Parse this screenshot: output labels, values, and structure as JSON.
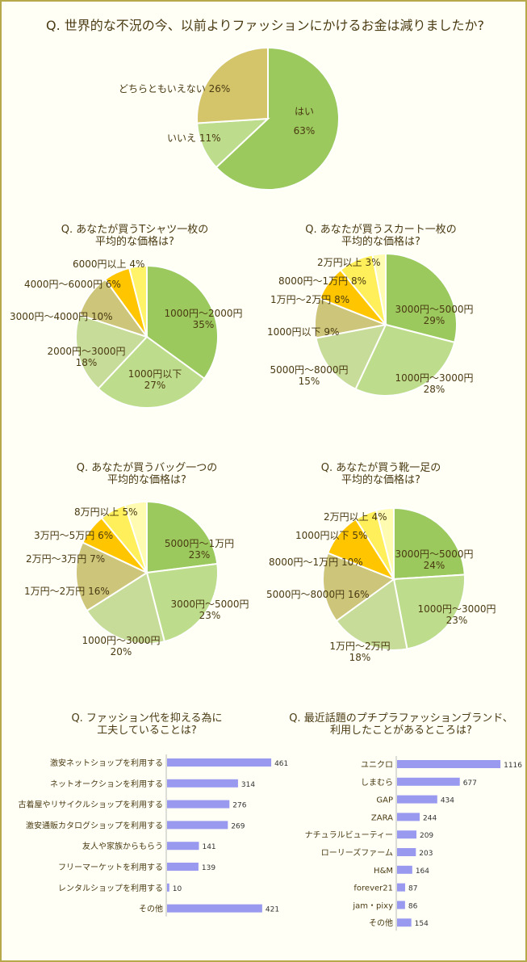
{
  "colors": {
    "frame": "#b6a94a",
    "slice_palette": [
      "#9bc95d",
      "#bedd8c",
      "#c9cf7a",
      "#ffc600",
      "#ffef5a",
      "#fffbb0"
    ],
    "bar": "#9999f0"
  },
  "chart_data": [
    {
      "type": "pie",
      "title": "Q. 世界的な不況の今、以前よりファッションにかけるお金は減りましたか?",
      "slices": [
        {
          "label": "はい",
          "value": 63,
          "pct": "63%",
          "color": "#9bc95d"
        },
        {
          "label": "いいえ",
          "value": 11,
          "pct": "11%",
          "color": "#bedd8c"
        },
        {
          "label": "どちらともいえない",
          "value": 26,
          "pct": "26%",
          "color": "#d4c56a"
        }
      ]
    },
    {
      "type": "pie",
      "title_lines": [
        "Q. あなたが買うTシャツ一枚の",
        "平均的な価格は?"
      ],
      "slices": [
        {
          "label": "1000円～2000円",
          "value": 35,
          "pct": "35%",
          "color": "#9bc95d"
        },
        {
          "label": "1000円以下",
          "value": 27,
          "pct": "27%",
          "color": "#bedd8c"
        },
        {
          "label": "2000円～3000円",
          "value": 18,
          "pct": "18%",
          "color": "#c8dc9a"
        },
        {
          "label": "3000円～4000円",
          "value": 10,
          "pct": "10%",
          "color": "#cdc57a"
        },
        {
          "label": "4000円～6000円",
          "value": 6,
          "pct": "6%",
          "color": "#ffc600"
        },
        {
          "label": "6000円以上",
          "value": 4,
          "pct": "4%",
          "color": "#fff36a"
        }
      ]
    },
    {
      "type": "pie",
      "title_lines": [
        "Q. あなたが買うスカート一枚の",
        "平均的な価格は?"
      ],
      "slices": [
        {
          "label": "3000円～5000円",
          "value": 29,
          "pct": "29%",
          "color": "#9bc95d"
        },
        {
          "label": "1000円～3000円",
          "value": 28,
          "pct": "28%",
          "color": "#bedd8c"
        },
        {
          "label": "5000円～8000円",
          "value": 15,
          "pct": "15%",
          "color": "#c8dc9a"
        },
        {
          "label": "1000円以下",
          "value": 9,
          "pct": "9%",
          "color": "#cdc57a"
        },
        {
          "label": "1万円～2万円",
          "value": 8,
          "pct": "8%",
          "color": "#ffc600"
        },
        {
          "label": "8000円～1万円",
          "value": 8,
          "pct": "8%",
          "color": "#ffef5a"
        },
        {
          "label": "2万円以上",
          "value": 3,
          "pct": "3%",
          "color": "#fffbb0"
        }
      ]
    },
    {
      "type": "pie",
      "title_lines": [
        "Q. あなたが買うバッグ一つの",
        "平均的な価格は?"
      ],
      "slices": [
        {
          "label": "5000円～1万円",
          "value": 23,
          "pct": "23%",
          "color": "#9bc95d"
        },
        {
          "label": "3000円～5000円",
          "value": 23,
          "pct": "23%",
          "color": "#bedd8c"
        },
        {
          "label": "1000円～3000円",
          "value": 20,
          "pct": "20%",
          "color": "#c8dc9a"
        },
        {
          "label": "1万円～2万円",
          "value": 16,
          "pct": "16%",
          "color": "#cdc57a"
        },
        {
          "label": "2万円～3万円",
          "value": 7,
          "pct": "7%",
          "color": "#ffc600"
        },
        {
          "label": "3万円～5万円",
          "value": 6,
          "pct": "6%",
          "color": "#ffef5a"
        },
        {
          "label": "8万円以上",
          "value": 5,
          "pct": "5%",
          "color": "#fffbb0"
        }
      ]
    },
    {
      "type": "pie",
      "title_lines": [
        "Q. あなたが買う靴一足の",
        "平均的な価格は?"
      ],
      "slices": [
        {
          "label": "3000円～5000円",
          "value": 24,
          "pct": "24%",
          "color": "#9bc95d"
        },
        {
          "label": "1000円～3000円",
          "value": 23,
          "pct": "23%",
          "color": "#bedd8c"
        },
        {
          "label": "1万円～2万円",
          "value": 18,
          "pct": "18%",
          "color": "#c8dc9a"
        },
        {
          "label": "5000円～8000円",
          "value": 16,
          "pct": "16%",
          "color": "#cdc57a"
        },
        {
          "label": "8000円～1万円",
          "value": 10,
          "pct": "10%",
          "color": "#ffc600"
        },
        {
          "label": "1000円以下",
          "value": 5,
          "pct": "5%",
          "color": "#ffef5a"
        },
        {
          "label": "2万円以上",
          "value": 4,
          "pct": "4%",
          "color": "#fffbb0"
        }
      ]
    },
    {
      "type": "bar",
      "orientation": "horizontal",
      "title_lines": [
        "Q. ファッション代を抑える為に",
        "工夫していることは?"
      ],
      "categories": [
        "激安ネットショップを利用する",
        "ネットオークションを利用する",
        "古着屋やリサイクルショップを利用する",
        "激安通販カタログショップを利用する",
        "友人や家族からもらう",
        "フリーマーケットを利用する",
        "レンタルショップを利用する",
        "その他"
      ],
      "values": [
        461,
        314,
        276,
        269,
        141,
        139,
        10,
        421
      ],
      "xlim": [
        0,
        500
      ]
    },
    {
      "type": "bar",
      "orientation": "horizontal",
      "title_lines": [
        "Q. 最近話題のプチプラファッションブランド、",
        "利用したことがあるところは?"
      ],
      "categories": [
        "ユニクロ",
        "しまむら",
        "GAP",
        "ZARA",
        "ナチュラルビューティー",
        "ローリーズファーム",
        "H&M",
        "forever21",
        "jam・pixy",
        "その他"
      ],
      "values": [
        1116,
        677,
        434,
        244,
        209,
        203,
        164,
        87,
        86,
        154
      ],
      "xlim": [
        0,
        1150
      ]
    }
  ]
}
